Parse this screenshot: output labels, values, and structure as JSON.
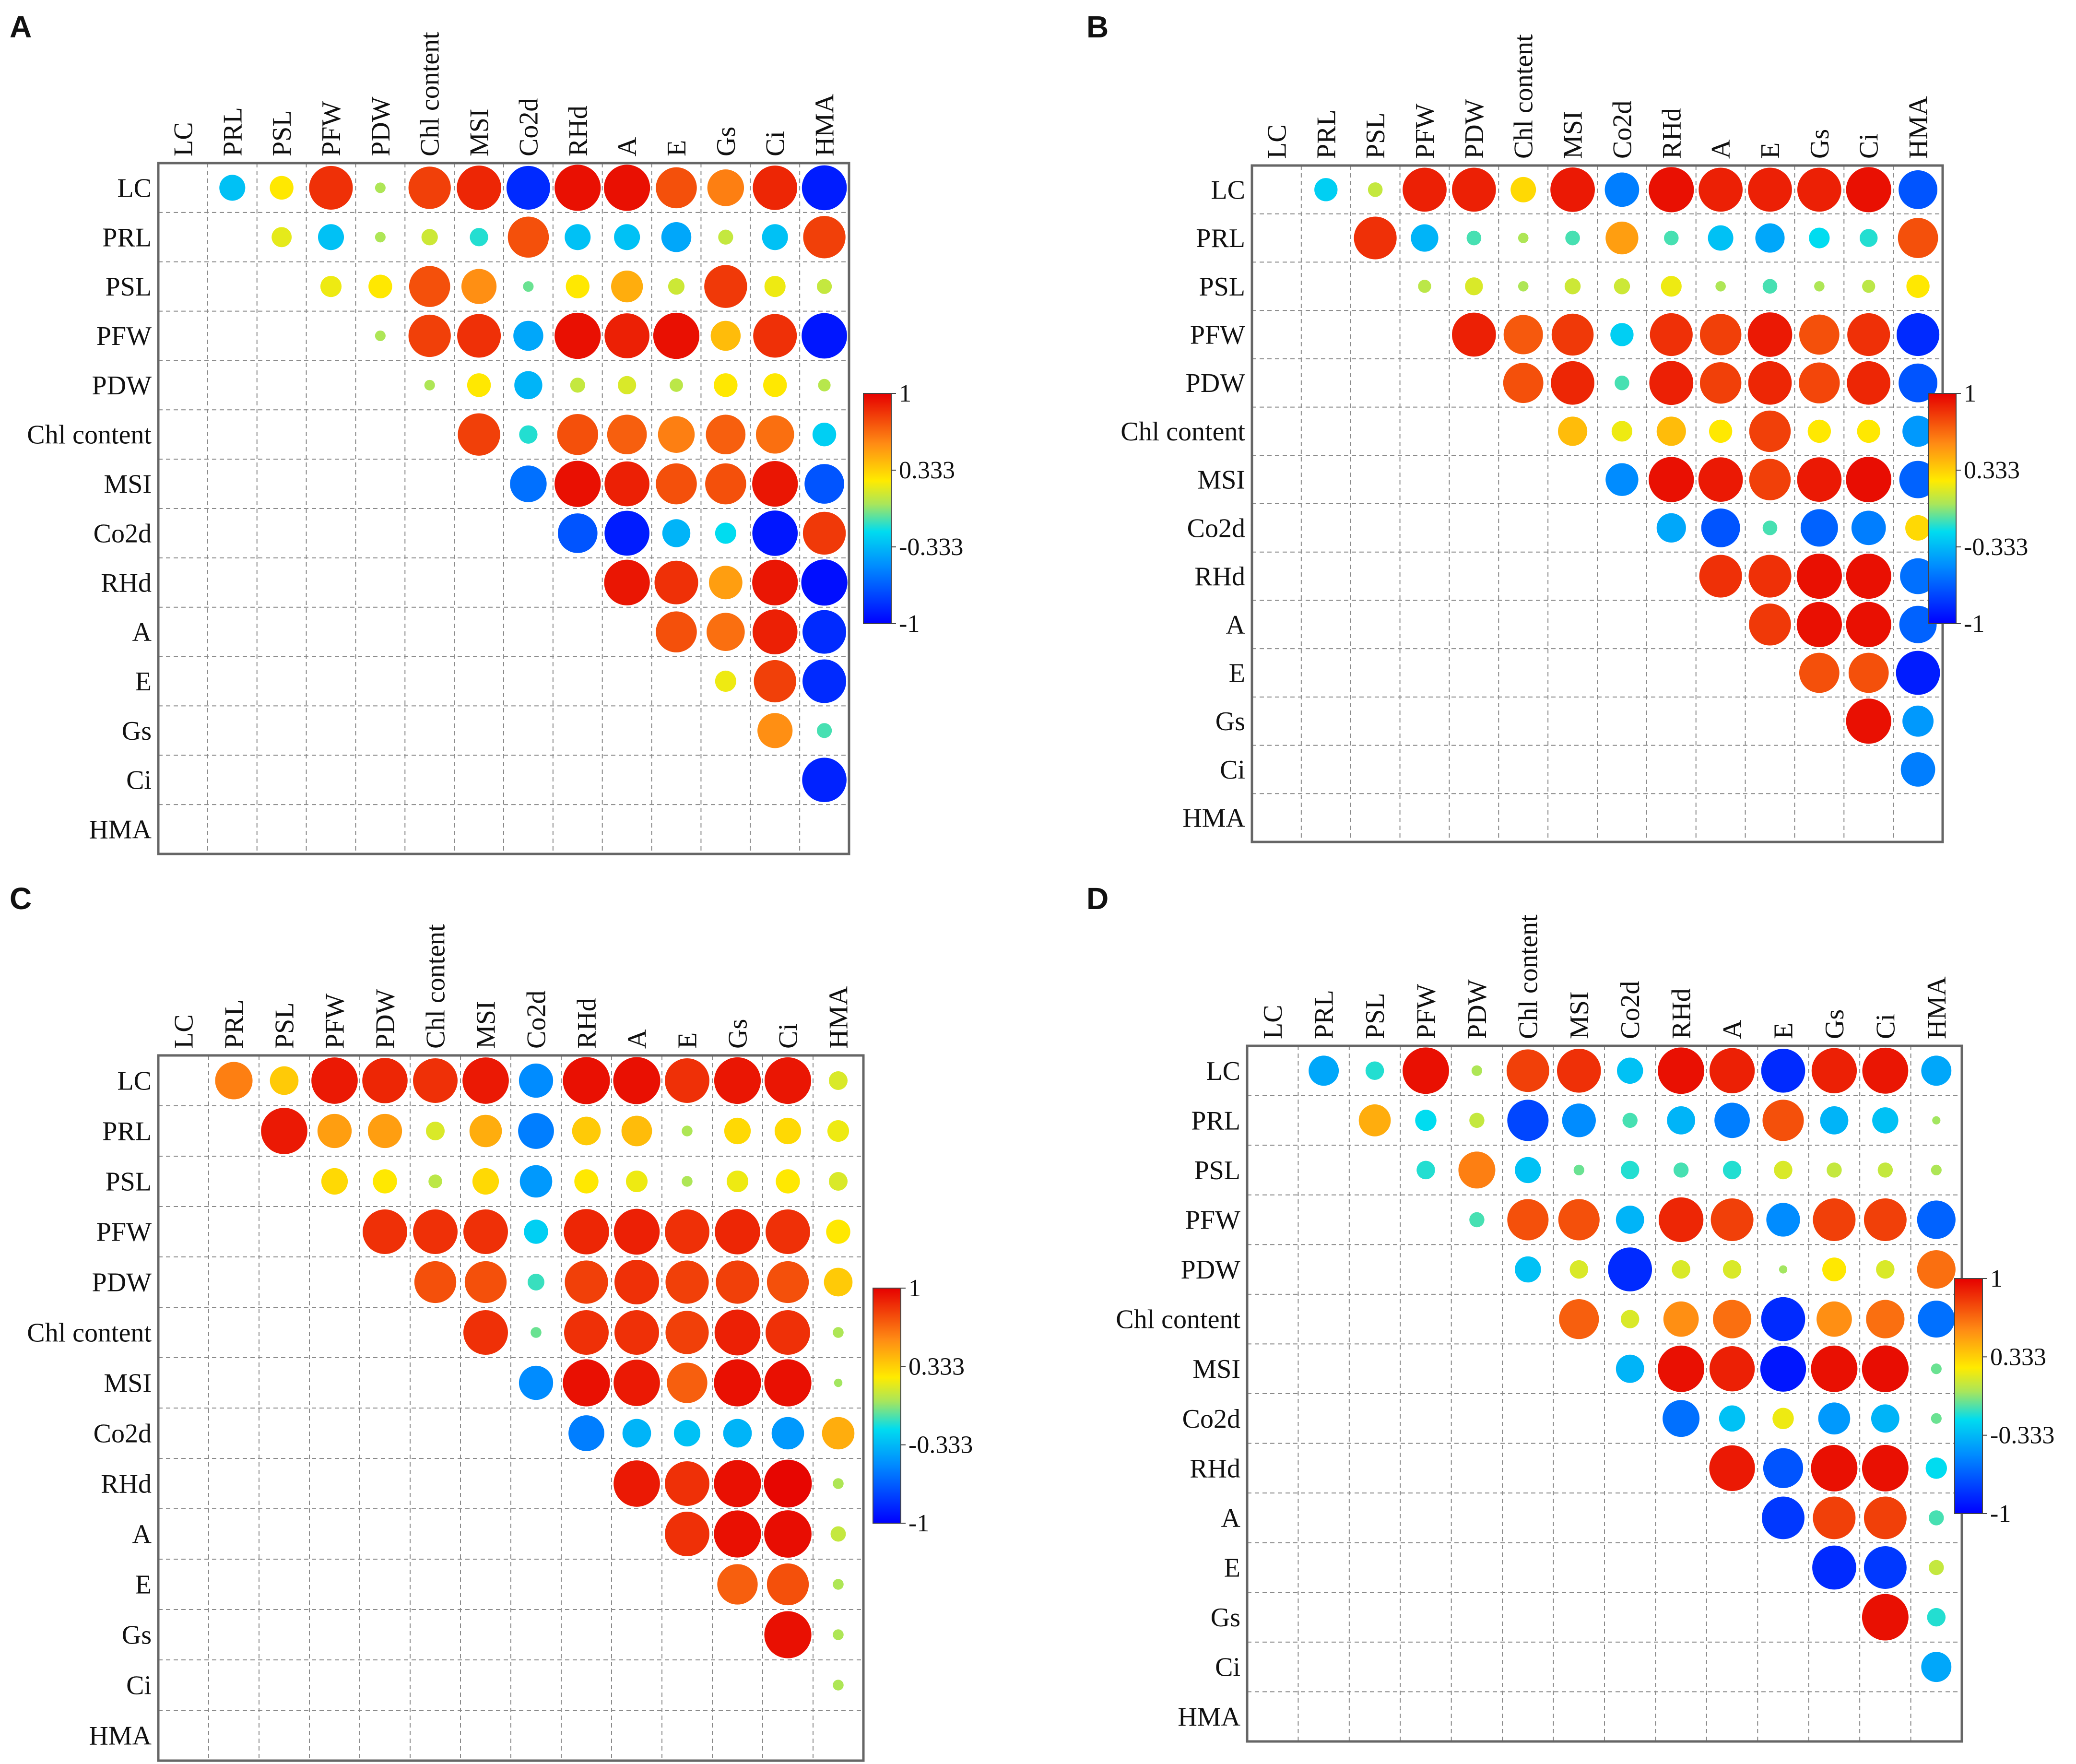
{
  "chart_data": [
    {
      "type": "correlogram",
      "panel": "A",
      "variables": [
        "LC",
        "PRL",
        "PSL",
        "PFW",
        "PDW",
        "Chl content",
        "MSI",
        "Co2d",
        "RHd",
        "A",
        "E",
        "Gs",
        "Ci",
        "HMA"
      ],
      "colorbar": {
        "range": [
          -1,
          1
        ],
        "ticks": [
          "1",
          "0.333",
          "-0.333",
          "-1"
        ]
      },
      "matrix": [
        [
          null,
          -0.3,
          0.25,
          0.85,
          0.05,
          0.8,
          0.88,
          -0.85,
          0.95,
          0.95,
          0.75,
          0.6,
          0.88,
          -0.9
        ],
        [
          null,
          null,
          0.18,
          -0.3,
          0.05,
          0.12,
          -0.15,
          0.75,
          -0.3,
          -0.3,
          -0.4,
          0.1,
          -0.3,
          0.8
        ],
        [
          null,
          null,
          null,
          0.2,
          0.25,
          0.75,
          0.55,
          -0.05,
          0.25,
          0.45,
          0.12,
          0.82,
          0.2,
          0.1
        ],
        [
          null,
          null,
          null,
          null,
          0.05,
          0.8,
          0.85,
          -0.4,
          0.95,
          0.9,
          0.95,
          0.4,
          0.85,
          -0.92
        ],
        [
          null,
          null,
          null,
          null,
          null,
          0.05,
          0.25,
          -0.35,
          0.1,
          0.15,
          0.08,
          0.25,
          0.25,
          0.07
        ],
        [
          null,
          null,
          null,
          null,
          null,
          null,
          0.8,
          -0.15,
          0.75,
          0.7,
          0.6,
          0.7,
          0.65,
          -0.25
        ],
        [
          null,
          null,
          null,
          null,
          null,
          null,
          null,
          -0.6,
          0.95,
          0.9,
          0.75,
          0.75,
          0.93,
          -0.7
        ],
        [
          null,
          null,
          null,
          null,
          null,
          null,
          null,
          null,
          -0.7,
          -0.9,
          -0.35,
          -0.2,
          -0.92,
          0.82
        ],
        [
          null,
          null,
          null,
          null,
          null,
          null,
          null,
          null,
          null,
          0.93,
          0.85,
          0.5,
          0.93,
          -0.95
        ],
        [
          null,
          null,
          null,
          null,
          null,
          null,
          null,
          null,
          null,
          null,
          0.75,
          0.65,
          0.9,
          -0.85
        ],
        [
          null,
          null,
          null,
          null,
          null,
          null,
          null,
          null,
          null,
          null,
          null,
          0.2,
          0.8,
          -0.85
        ],
        [
          null,
          null,
          null,
          null,
          null,
          null,
          null,
          null,
          null,
          null,
          null,
          null,
          0.55,
          -0.1
        ],
        [
          null,
          null,
          null,
          null,
          null,
          null,
          null,
          null,
          null,
          null,
          null,
          null,
          null,
          -0.88
        ],
        [
          null,
          null,
          null,
          null,
          null,
          null,
          null,
          null,
          null,
          null,
          null,
          null,
          null,
          null
        ]
      ]
    },
    {
      "type": "correlogram",
      "panel": "B",
      "variables": [
        "LC",
        "PRL",
        "PSL",
        "PFW",
        "PDW",
        "Chl content",
        "MSI",
        "Co2d",
        "RHd",
        "A",
        "E",
        "Gs",
        "Ci",
        "HMA"
      ],
      "colorbar": {
        "range": [
          -1,
          1
        ],
        "ticks": [
          "1",
          "0.333",
          "-0.333",
          "-1"
        ]
      },
      "matrix": [
        [
          null,
          -0.25,
          0.1,
          0.9,
          0.9,
          0.3,
          0.92,
          -0.55,
          0.95,
          0.9,
          0.9,
          0.9,
          0.95,
          -0.7
        ],
        [
          null,
          null,
          0.85,
          -0.35,
          -0.1,
          0.05,
          -0.1,
          0.5,
          -0.1,
          -0.3,
          -0.4,
          -0.2,
          -0.15,
          0.75
        ],
        [
          null,
          null,
          null,
          0.08,
          0.15,
          0.05,
          0.12,
          0.12,
          0.2,
          0.05,
          -0.1,
          0.05,
          0.08,
          0.25
        ],
        [
          null,
          null,
          null,
          null,
          0.9,
          0.72,
          0.82,
          -0.25,
          0.85,
          0.8,
          0.92,
          0.75,
          0.85,
          -0.85
        ],
        [
          null,
          null,
          null,
          null,
          null,
          0.75,
          0.88,
          -0.1,
          0.9,
          0.8,
          0.88,
          0.78,
          0.88,
          -0.7
        ],
        [
          null,
          null,
          null,
          null,
          null,
          null,
          0.4,
          0.2,
          0.4,
          0.25,
          0.8,
          0.25,
          0.25,
          -0.45
        ],
        [
          null,
          null,
          null,
          null,
          null,
          null,
          null,
          -0.5,
          0.95,
          0.92,
          0.8,
          0.92,
          0.96,
          -0.65
        ],
        [
          null,
          null,
          null,
          null,
          null,
          null,
          null,
          null,
          -0.4,
          -0.7,
          -0.1,
          -0.65,
          -0.55,
          0.3
        ],
        [
          null,
          null,
          null,
          null,
          null,
          null,
          null,
          null,
          null,
          0.85,
          0.85,
          0.95,
          0.95,
          -0.6
        ],
        [
          null,
          null,
          null,
          null,
          null,
          null,
          null,
          null,
          null,
          null,
          0.82,
          0.95,
          0.95,
          -0.65
        ],
        [
          null,
          null,
          null,
          null,
          null,
          null,
          null,
          null,
          null,
          null,
          null,
          0.75,
          0.75,
          -0.9
        ],
        [
          null,
          null,
          null,
          null,
          null,
          null,
          null,
          null,
          null,
          null,
          null,
          null,
          0.95,
          -0.45
        ],
        [
          null,
          null,
          null,
          null,
          null,
          null,
          null,
          null,
          null,
          null,
          null,
          null,
          null,
          -0.55
        ],
        [
          null,
          null,
          null,
          null,
          null,
          null,
          null,
          null,
          null,
          null,
          null,
          null,
          null,
          null
        ]
      ]
    },
    {
      "type": "correlogram",
      "panel": "C",
      "variables": [
        "LC",
        "PRL",
        "PSL",
        "PFW",
        "PDW",
        "Chl content",
        "MSI",
        "Co2d",
        "RHd",
        "A",
        "E",
        "Gs",
        "Ci",
        "HMA"
      ],
      "colorbar": {
        "range": [
          -1,
          1
        ],
        "ticks": [
          "1",
          "0.333",
          "-0.333",
          "-1"
        ]
      },
      "matrix": [
        [
          null,
          0.6,
          0.35,
          0.92,
          0.88,
          0.85,
          0.92,
          -0.5,
          0.95,
          0.95,
          0.85,
          0.93,
          0.93,
          0.15
        ],
        [
          null,
          null,
          0.92,
          0.5,
          0.5,
          0.15,
          0.45,
          -0.55,
          0.35,
          0.4,
          0.05,
          0.3,
          0.3,
          0.2
        ],
        [
          null,
          null,
          null,
          0.3,
          0.25,
          0.08,
          0.3,
          -0.45,
          0.25,
          0.2,
          0.05,
          0.2,
          0.25,
          0.15
        ],
        [
          null,
          null,
          null,
          null,
          0.85,
          0.85,
          0.85,
          -0.25,
          0.88,
          0.9,
          0.85,
          0.88,
          0.85,
          0.25
        ],
        [
          null,
          null,
          null,
          null,
          null,
          0.75,
          0.75,
          -0.12,
          0.8,
          0.85,
          0.8,
          0.8,
          0.75,
          0.35
        ],
        [
          null,
          null,
          null,
          null,
          null,
          null,
          0.85,
          -0.05,
          0.85,
          0.85,
          0.8,
          0.9,
          0.85,
          0.05
        ],
        [
          null,
          null,
          null,
          null,
          null,
          null,
          null,
          -0.5,
          0.95,
          0.92,
          0.7,
          0.95,
          0.95,
          0.03
        ],
        [
          null,
          null,
          null,
          null,
          null,
          null,
          null,
          null,
          -0.55,
          -0.35,
          -0.3,
          -0.35,
          -0.45,
          0.45
        ],
        [
          null,
          null,
          null,
          null,
          null,
          null,
          null,
          null,
          null,
          0.92,
          0.85,
          0.95,
          0.98,
          0.05
        ],
        [
          null,
          null,
          null,
          null,
          null,
          null,
          null,
          null,
          null,
          null,
          0.85,
          0.95,
          0.96,
          0.1
        ],
        [
          null,
          null,
          null,
          null,
          null,
          null,
          null,
          null,
          null,
          null,
          null,
          0.7,
          0.75,
          0.05
        ],
        [
          null,
          null,
          null,
          null,
          null,
          null,
          null,
          null,
          null,
          null,
          null,
          null,
          0.95,
          0.05
        ],
        [
          null,
          null,
          null,
          null,
          null,
          null,
          null,
          null,
          null,
          null,
          null,
          null,
          null,
          0.05
        ],
        [
          null,
          null,
          null,
          null,
          null,
          null,
          null,
          null,
          null,
          null,
          null,
          null,
          null,
          null
        ]
      ]
    },
    {
      "type": "correlogram",
      "panel": "D",
      "variables": [
        "LC",
        "PRL",
        "PSL",
        "PFW",
        "PDW",
        "Chl content",
        "MSI",
        "Co2d",
        "RHd",
        "A",
        "E",
        "Gs",
        "Ci",
        "HMA"
      ],
      "colorbar": {
        "range": [
          -1,
          1
        ],
        "ticks": [
          "1",
          "0.333",
          "-0.333",
          "-1"
        ]
      },
      "matrix": [
        [
          null,
          -0.4,
          -0.15,
          0.95,
          0.05,
          0.8,
          0.85,
          -0.3,
          0.95,
          0.9,
          -0.85,
          0.9,
          0.93,
          -0.4
        ],
        [
          null,
          null,
          0.45,
          -0.2,
          0.1,
          -0.75,
          -0.5,
          -0.1,
          -0.35,
          -0.55,
          0.75,
          -0.35,
          -0.3,
          0.03
        ],
        [
          null,
          null,
          null,
          -0.15,
          0.6,
          -0.3,
          -0.05,
          -0.15,
          -0.1,
          -0.15,
          0.15,
          0.1,
          0.1,
          0.05
        ],
        [
          null,
          null,
          null,
          null,
          -0.1,
          0.75,
          0.75,
          -0.35,
          0.88,
          0.8,
          -0.5,
          0.8,
          0.8,
          -0.65
        ],
        [
          null,
          null,
          null,
          null,
          null,
          -0.3,
          0.15,
          -0.85,
          0.15,
          0.15,
          0.03,
          0.25,
          0.15,
          0.65
        ],
        [
          null,
          null,
          null,
          null,
          null,
          null,
          0.7,
          0.15,
          0.55,
          0.65,
          -0.85,
          0.55,
          0.65,
          -0.6
        ],
        [
          null,
          null,
          null,
          null,
          null,
          null,
          null,
          -0.35,
          0.95,
          0.9,
          -0.92,
          0.95,
          0.96,
          -0.05
        ],
        [
          null,
          null,
          null,
          null,
          null,
          null,
          null,
          null,
          -0.6,
          -0.3,
          0.2,
          -0.45,
          -0.35,
          -0.05
        ],
        [
          null,
          null,
          null,
          null,
          null,
          null,
          null,
          null,
          null,
          0.92,
          -0.7,
          0.95,
          0.95,
          -0.2
        ],
        [
          null,
          null,
          null,
          null,
          null,
          null,
          null,
          null,
          null,
          null,
          -0.8,
          0.8,
          0.8,
          -0.1
        ],
        [
          null,
          null,
          null,
          null,
          null,
          null,
          null,
          null,
          null,
          null,
          null,
          -0.85,
          -0.8,
          0.1
        ],
        [
          null,
          null,
          null,
          null,
          null,
          null,
          null,
          null,
          null,
          null,
          null,
          null,
          0.95,
          -0.15
        ],
        [
          null,
          null,
          null,
          null,
          null,
          null,
          null,
          null,
          null,
          null,
          null,
          null,
          null,
          -0.4
        ],
        [
          null,
          null,
          null,
          null,
          null,
          null,
          null,
          null,
          null,
          null,
          null,
          null,
          null,
          null
        ]
      ]
    }
  ]
}
